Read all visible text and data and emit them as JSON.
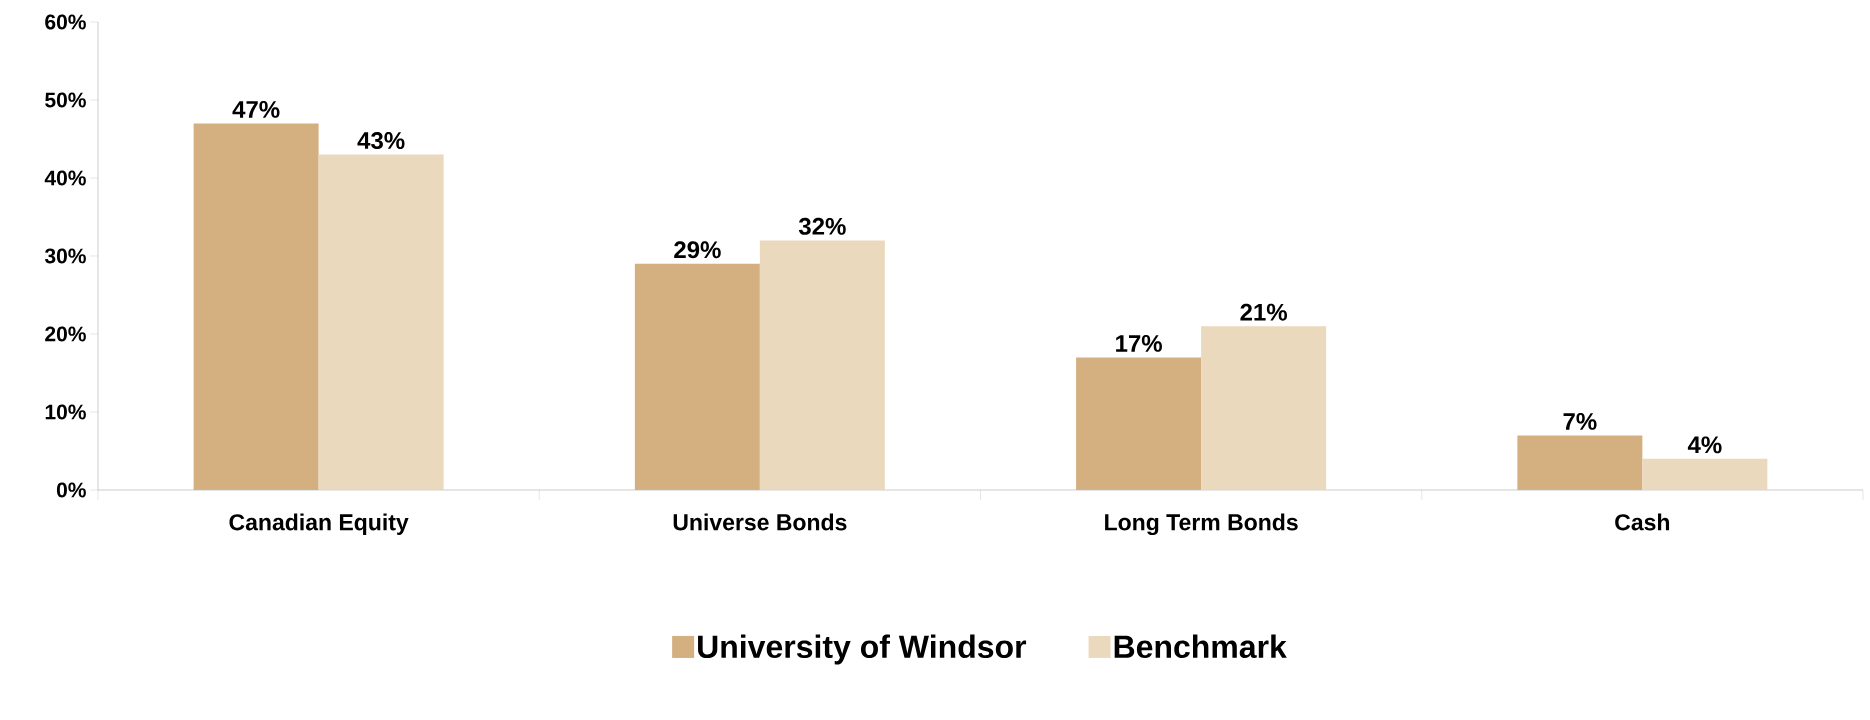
{
  "chart_data": {
    "type": "bar",
    "categories": [
      "Canadian Equity",
      "Universe Bonds",
      "Long Term Bonds",
      "Cash"
    ],
    "series": [
      {
        "name": "University of Windsor",
        "color": "#d4af7f",
        "values": [
          47,
          29,
          17,
          7
        ],
        "value_labels": [
          "47%",
          "29%",
          "17%",
          "7%"
        ]
      },
      {
        "name": "Benchmark",
        "color": "#ebd9bd",
        "values": [
          43,
          32,
          21,
          4
        ],
        "value_labels": [
          "43%",
          "32%",
          "21%",
          "4%"
        ]
      }
    ],
    "ylim": [
      0,
      60
    ],
    "yticks": [
      {
        "value": 0,
        "label": "0%"
      },
      {
        "value": 10,
        "label": "10%"
      },
      {
        "value": 20,
        "label": "20%"
      },
      {
        "value": 30,
        "label": "30%"
      },
      {
        "value": 40,
        "label": "40%"
      },
      {
        "value": 50,
        "label": "50%"
      },
      {
        "value": 60,
        "label": "60%"
      }
    ],
    "grid": false,
    "legend": "bottom"
  }
}
